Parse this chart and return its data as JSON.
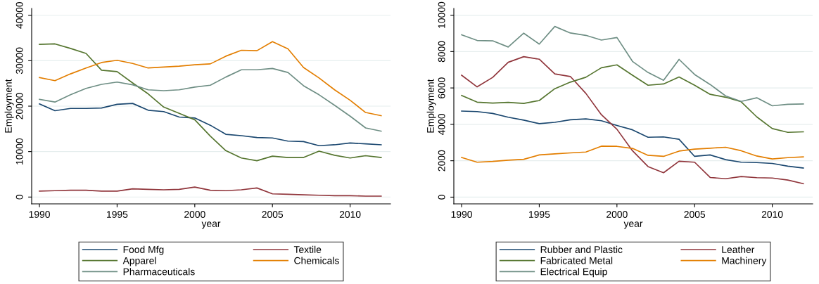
{
  "chart_data": [
    {
      "type": "line",
      "xlabel": "year",
      "ylabel": "Employment",
      "x": [
        1990,
        1991,
        1992,
        1993,
        1994,
        1995,
        1996,
        1997,
        1998,
        1999,
        2000,
        2001,
        2002,
        2003,
        2004,
        2005,
        2006,
        2007,
        2008,
        2009,
        2010,
        2011,
        2012
      ],
      "xlim": [
        1989.5,
        2012.6
      ],
      "xticks": [
        1990,
        1995,
        2000,
        2005,
        2010
      ],
      "ylim": [
        -1500,
        41500
      ],
      "yticks": [
        0,
        10000,
        20000,
        30000,
        40000
      ],
      "grid": "y",
      "legend": "bottom",
      "marker": "none",
      "line_style": "solid",
      "series": [
        {
          "name": "Food Mfg",
          "color": "#1a476f",
          "values": [
            20500,
            19000,
            19500,
            19500,
            19600,
            20400,
            20600,
            19100,
            18800,
            17600,
            17400,
            15800,
            13800,
            13500,
            13100,
            13000,
            12300,
            12200,
            11300,
            11500,
            11900,
            11700,
            11500
          ]
        },
        {
          "name": "Textile",
          "color": "#90353b",
          "values": [
            1300,
            1400,
            1500,
            1500,
            1300,
            1300,
            1800,
            1700,
            1600,
            1700,
            2200,
            1500,
            1400,
            1600,
            2000,
            700,
            600,
            500,
            400,
            300,
            300,
            200,
            200
          ]
        },
        {
          "name": "Apparel",
          "color": "#55752f",
          "values": [
            33600,
            33700,
            32700,
            31600,
            27900,
            27600,
            25100,
            22700,
            19800,
            18400,
            17000,
            13400,
            10200,
            8600,
            8000,
            9000,
            8700,
            8700,
            10100,
            9200,
            8600,
            9100,
            8700
          ]
        },
        {
          "name": "Chemicals",
          "color": "#e37e00",
          "values": [
            26300,
            25600,
            27100,
            28400,
            29600,
            30100,
            29400,
            28400,
            28600,
            28800,
            29100,
            29300,
            31000,
            32300,
            32200,
            34200,
            32600,
            28500,
            26200,
            23600,
            21300,
            18600,
            17900
          ]
        },
        {
          "name": "Pharmaceuticals",
          "color": "#6e8e84",
          "values": [
            21500,
            20900,
            22500,
            23900,
            24800,
            25300,
            24700,
            23600,
            23400,
            23600,
            24200,
            24600,
            26400,
            28000,
            28000,
            28300,
            27400,
            24500,
            22500,
            20200,
            17800,
            15200,
            14500
          ]
        }
      ]
    },
    {
      "type": "line",
      "xlabel": "year",
      "ylabel": "Employment",
      "x": [
        1990,
        1991,
        1992,
        1993,
        1994,
        1995,
        1996,
        1997,
        1998,
        1999,
        2000,
        2001,
        2002,
        2003,
        2004,
        2005,
        2006,
        2007,
        2008,
        2009,
        2010,
        2011,
        2012
      ],
      "xlim": [
        1989.5,
        2012.6
      ],
      "xticks": [
        1990,
        1995,
        2000,
        2005,
        2010
      ],
      "ylim": [
        -370,
        10370
      ],
      "yticks": [
        0,
        2000,
        4000,
        6000,
        8000,
        10000
      ],
      "grid": "y",
      "legend": "bottom",
      "marker": "none",
      "line_style": "solid",
      "series": [
        {
          "name": "Rubber and Plastic",
          "color": "#1a476f",
          "values": [
            4730,
            4700,
            4600,
            4390,
            4230,
            4040,
            4110,
            4250,
            4300,
            4200,
            3940,
            3700,
            3290,
            3310,
            3180,
            2240,
            2320,
            2060,
            1920,
            1900,
            1850,
            1700,
            1600
          ]
        },
        {
          "name": "Leather",
          "color": "#90353b",
          "values": [
            6700,
            6060,
            6580,
            7410,
            7720,
            7580,
            6770,
            6630,
            5700,
            4530,
            3730,
            2550,
            1680,
            1340,
            1970,
            1920,
            1080,
            1010,
            1130,
            1070,
            1050,
            940,
            740
          ]
        },
        {
          "name": "Fabricated Metal",
          "color": "#55752f",
          "values": [
            5590,
            5220,
            5170,
            5210,
            5150,
            5310,
            5960,
            6320,
            6590,
            7110,
            7270,
            6700,
            6150,
            6220,
            6600,
            6150,
            5650,
            5490,
            5240,
            4410,
            3770,
            3560,
            3590
          ]
        },
        {
          "name": "Machinery",
          "color": "#e37e00",
          "values": [
            2180,
            1920,
            1960,
            2030,
            2080,
            2320,
            2380,
            2430,
            2480,
            2800,
            2790,
            2680,
            2300,
            2240,
            2530,
            2640,
            2690,
            2740,
            2550,
            2260,
            2100,
            2170,
            2210
          ]
        },
        {
          "name": "Electrical Equip",
          "color": "#6e8e84",
          "values": [
            8920,
            8610,
            8590,
            8250,
            9010,
            8410,
            9380,
            9020,
            8890,
            8630,
            8770,
            7460,
            6850,
            6420,
            7570,
            6740,
            6190,
            5560,
            5260,
            5460,
            5020,
            5100,
            5120
          ]
        }
      ]
    }
  ]
}
